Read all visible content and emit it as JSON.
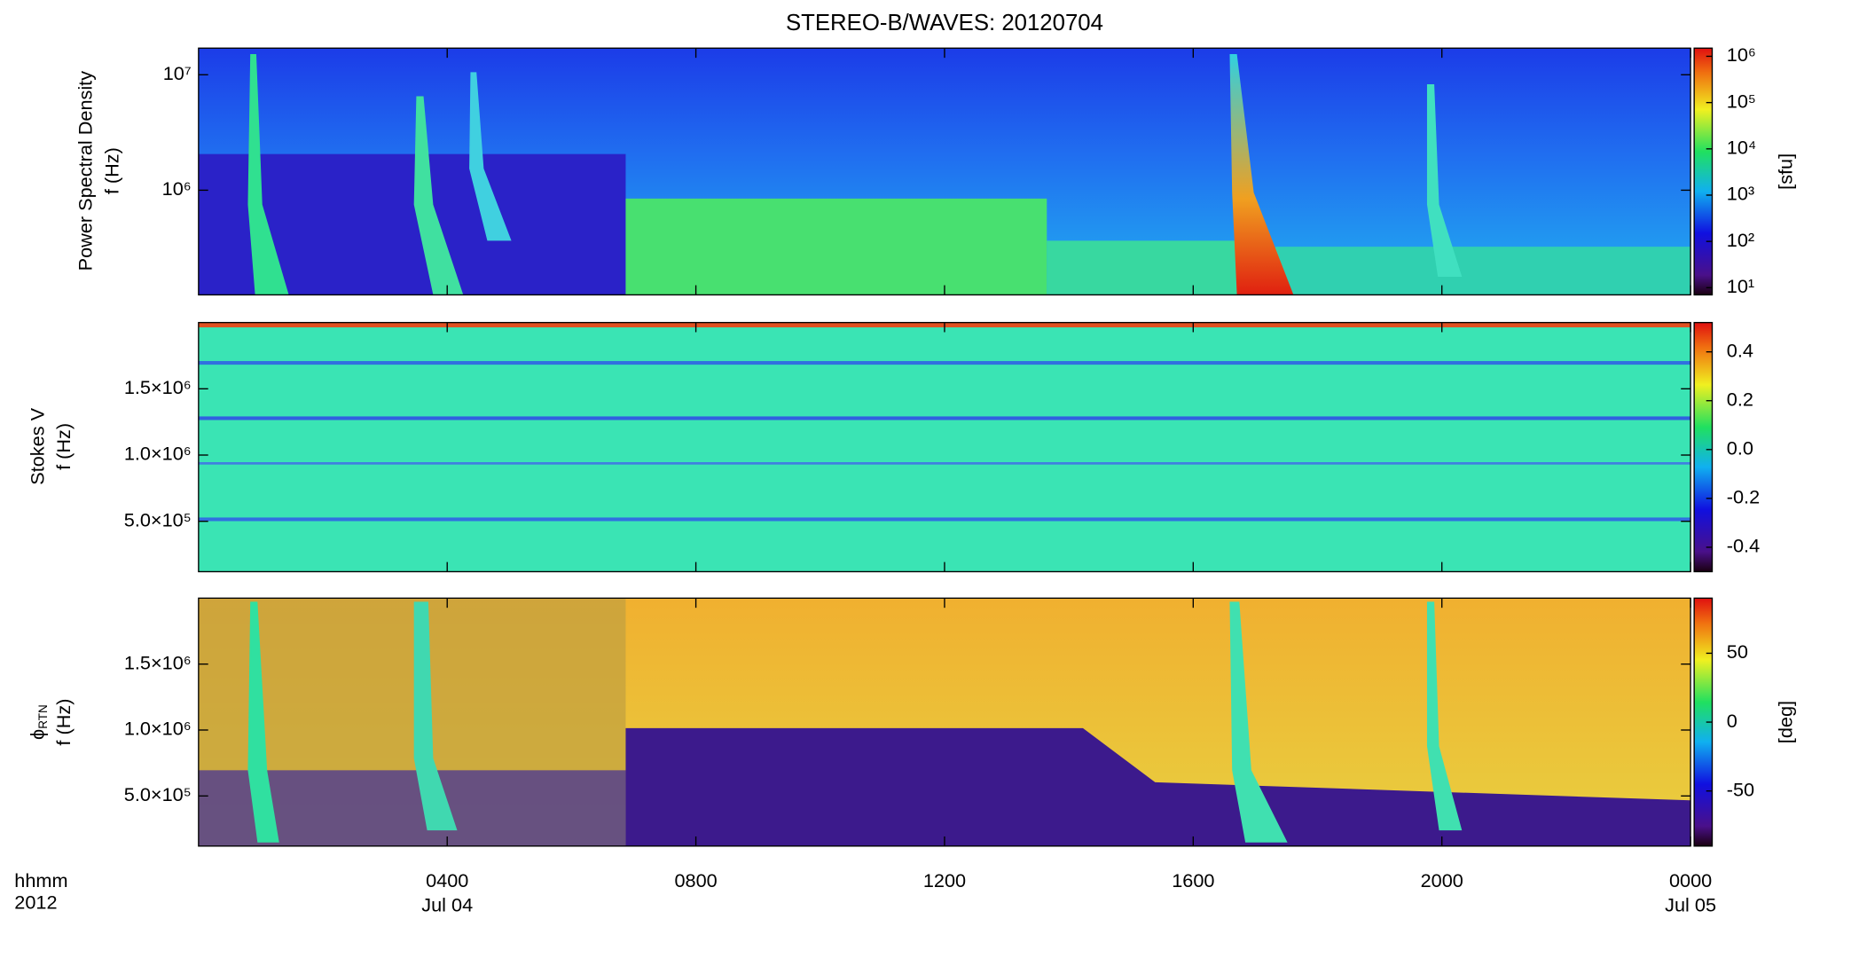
{
  "chart_data": [
    {
      "type": "heatmap",
      "title": "STEREO-B/WAVES: 20120704",
      "ylabel": [
        "Power Spectral Density",
        "f (Hz)"
      ],
      "yscale": "log",
      "ylim": [
        124000,
        17000000
      ],
      "yticks": [
        {
          "value": 1000000,
          "label": "10⁶"
        },
        {
          "value": 10000000,
          "label": "10⁷"
        }
      ],
      "colorbar": {
        "scale": "log",
        "clim": [
          7,
          1500000
        ],
        "ticks": [
          {
            "value": 10,
            "label": "10¹"
          },
          {
            "value": 100,
            "label": "10²"
          },
          {
            "value": 1000,
            "label": "10³"
          },
          {
            "value": 10000,
            "label": "10⁴"
          },
          {
            "value": 100000,
            "label": "10⁵"
          },
          {
            "value": 1000000,
            "label": "10⁶"
          }
        ],
        "label": "[sfu]"
      }
    },
    {
      "type": "heatmap",
      "ylabel": [
        "Stokes V",
        "f (Hz)"
      ],
      "yscale": "linear",
      "ylim": [
        120000,
        2000000
      ],
      "yticks": [
        {
          "value": 500000,
          "label": "5.0×10⁵"
        },
        {
          "value": 1000000,
          "label": "1.0×10⁶"
        },
        {
          "value": 1500000,
          "label": "1.5×10⁶"
        }
      ],
      "colorbar": {
        "scale": "linear",
        "clim": [
          -0.5,
          0.52
        ],
        "ticks": [
          -0.4,
          -0.2,
          {
            "value": 0,
            "label": "0.0"
          },
          0.2,
          0.4
        ]
      }
    },
    {
      "type": "heatmap",
      "ylabel": [
        "ϕ",
        "f (Hz)"
      ],
      "ylabel_subscript": "RTN",
      "yscale": "linear",
      "ylim": [
        120000,
        2000000
      ],
      "yticks": [
        {
          "value": 500000,
          "label": "5.0×10⁵"
        },
        {
          "value": 1000000,
          "label": "1.0×10⁶"
        },
        {
          "value": 1500000,
          "label": "1.5×10⁶"
        }
      ],
      "colorbar": {
        "scale": "linear",
        "clim": [
          -90,
          90
        ],
        "ticks": [
          -50,
          0,
          50
        ],
        "label": "[deg]"
      },
      "xlabel": [
        "hhmm",
        "2012"
      ],
      "xlim": [
        0,
        24
      ],
      "xticks": [
        {
          "value": 4,
          "label": "0400",
          "sublabel": "Jul 04"
        },
        {
          "value": 8,
          "label": "0800"
        },
        {
          "value": 12,
          "label": "1200"
        },
        {
          "value": 16,
          "label": "1600"
        },
        {
          "value": 20,
          "label": "2000"
        },
        {
          "value": 24,
          "label": "0000",
          "sublabel": "Jul 05"
        }
      ]
    }
  ]
}
